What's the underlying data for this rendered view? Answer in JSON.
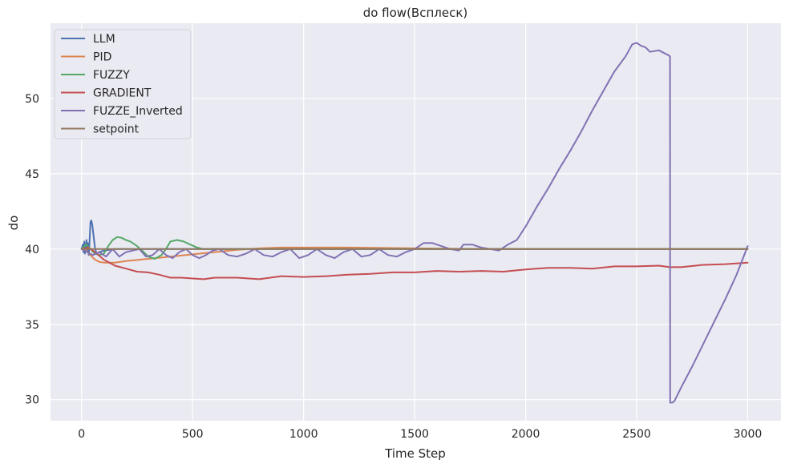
{
  "chart_data": {
    "type": "line",
    "title": "do flow(Всплеск)",
    "xlabel": "Time Step",
    "ylabel": "do",
    "xlim": [
      -140,
      3150
    ],
    "ylim": [
      28.6,
      55.0
    ],
    "xticks": [
      0,
      500,
      1000,
      1500,
      2000,
      2500,
      3000
    ],
    "yticks": [
      30,
      35,
      40,
      45,
      50
    ],
    "grid": true,
    "background": "#EAEAF2",
    "legend_position": "top-left",
    "series": [
      {
        "name": "LLM",
        "color": "#4C72B0",
        "x": [
          0,
          5,
          8,
          12,
          15,
          18,
          22,
          25,
          28,
          32,
          35,
          38,
          40,
          44,
          48,
          52,
          56,
          60,
          65,
          70,
          80,
          100,
          150,
          200,
          300,
          500,
          1000,
          1500,
          2000,
          2500,
          3000
        ],
        "y": [
          40.0,
          40.3,
          39.8,
          40.5,
          39.7,
          40.2,
          40.6,
          39.9,
          40.4,
          39.6,
          40.3,
          41.2,
          41.8,
          41.9,
          41.6,
          41.1,
          40.6,
          40.1,
          39.8,
          39.7,
          39.8,
          39.9,
          40.0,
          40.0,
          40.0,
          40.0,
          40.0,
          40.0,
          40.0,
          40.0,
          40.0
        ]
      },
      {
        "name": "PID",
        "color": "#DD8452",
        "x": [
          0,
          20,
          40,
          60,
          80,
          100,
          150,
          200,
          300,
          400,
          500,
          600,
          700,
          800,
          900,
          1000,
          1200,
          1500,
          1800,
          2000,
          2500,
          3000
        ],
        "y": [
          40.0,
          39.9,
          39.6,
          39.3,
          39.15,
          39.1,
          39.1,
          39.2,
          39.35,
          39.5,
          39.65,
          39.8,
          39.95,
          40.05,
          40.1,
          40.1,
          40.1,
          40.05,
          40.0,
          40.0,
          40.0,
          40.0
        ]
      },
      {
        "name": "FUZZY",
        "color": "#55A868",
        "x": [
          0,
          20,
          40,
          60,
          80,
          100,
          120,
          140,
          160,
          180,
          200,
          220,
          250,
          280,
          300,
          330,
          360,
          380,
          400,
          430,
          460,
          490,
          520,
          550,
          600,
          700,
          1000,
          1500,
          2000,
          2500,
          3000
        ],
        "y": [
          40.0,
          40.3,
          40.0,
          39.7,
          39.6,
          39.7,
          40.2,
          40.6,
          40.8,
          40.75,
          40.6,
          40.5,
          40.2,
          39.8,
          39.5,
          39.35,
          39.6,
          40.0,
          40.5,
          40.6,
          40.5,
          40.3,
          40.1,
          40.0,
          40.0,
          40.0,
          40.0,
          40.0,
          40.0,
          40.0,
          40.0
        ]
      },
      {
        "name": "GRADIENT",
        "color": "#C44E52",
        "x": [
          0,
          30,
          60,
          100,
          150,
          200,
          250,
          300,
          350,
          400,
          450,
          500,
          550,
          600,
          700,
          800,
          900,
          1000,
          1100,
          1200,
          1300,
          1400,
          1500,
          1600,
          1700,
          1800,
          1900,
          2000,
          2100,
          2200,
          2300,
          2400,
          2500,
          2600,
          2650,
          2700,
          2800,
          2900,
          3000
        ],
        "y": [
          40.0,
          40.1,
          39.8,
          39.3,
          38.9,
          38.7,
          38.5,
          38.45,
          38.3,
          38.1,
          38.1,
          38.05,
          38.0,
          38.1,
          38.1,
          38.0,
          38.2,
          38.15,
          38.2,
          38.3,
          38.35,
          38.45,
          38.45,
          38.55,
          38.5,
          38.55,
          38.5,
          38.65,
          38.75,
          38.75,
          38.7,
          38.85,
          38.85,
          38.9,
          38.8,
          38.8,
          38.95,
          39.0,
          39.1
        ]
      },
      {
        "name": "FUZZE_Inverted",
        "color": "#8172B3",
        "x": [
          0,
          50,
          80,
          110,
          140,
          170,
          200,
          230,
          260,
          290,
          320,
          350,
          380,
          410,
          440,
          470,
          500,
          530,
          560,
          590,
          620,
          660,
          700,
          740,
          780,
          820,
          860,
          900,
          940,
          980,
          1020,
          1060,
          1100,
          1140,
          1180,
          1220,
          1260,
          1300,
          1340,
          1380,
          1420,
          1460,
          1500,
          1540,
          1580,
          1620,
          1660,
          1700,
          1720,
          1760,
          1800,
          1840,
          1880,
          1920,
          1960,
          2000,
          2050,
          2100,
          2150,
          2200,
          2250,
          2300,
          2350,
          2400,
          2450,
          2480,
          2500,
          2520,
          2540,
          2560,
          2600,
          2640,
          2650,
          2651,
          2660,
          2670,
          2700,
          2750,
          2800,
          2850,
          2900,
          2950,
          3000
        ],
        "y": [
          40.0,
          39.6,
          39.8,
          39.5,
          40.0,
          39.5,
          39.8,
          39.9,
          40.0,
          39.5,
          39.6,
          40.0,
          39.6,
          39.4,
          39.8,
          40.0,
          39.6,
          39.4,
          39.6,
          39.9,
          40.0,
          39.6,
          39.5,
          39.7,
          40.0,
          39.6,
          39.5,
          39.8,
          40.0,
          39.4,
          39.6,
          40.0,
          39.6,
          39.4,
          39.8,
          40.0,
          39.5,
          39.6,
          40.0,
          39.6,
          39.5,
          39.8,
          40.0,
          40.4,
          40.4,
          40.2,
          40.0,
          39.9,
          40.3,
          40.3,
          40.1,
          40.0,
          39.9,
          40.3,
          40.6,
          41.5,
          42.8,
          44.0,
          45.3,
          46.5,
          47.8,
          49.2,
          50.5,
          51.8,
          52.8,
          53.6,
          53.7,
          53.5,
          53.4,
          53.1,
          53.2,
          52.9,
          52.8,
          29.8,
          29.8,
          29.9,
          30.8,
          32.2,
          33.7,
          35.2,
          36.7,
          38.3,
          40.2
        ]
      },
      {
        "name": "setpoint",
        "color": "#937860",
        "x": [
          0,
          3000
        ],
        "y": [
          40.0,
          40.0
        ]
      }
    ]
  }
}
